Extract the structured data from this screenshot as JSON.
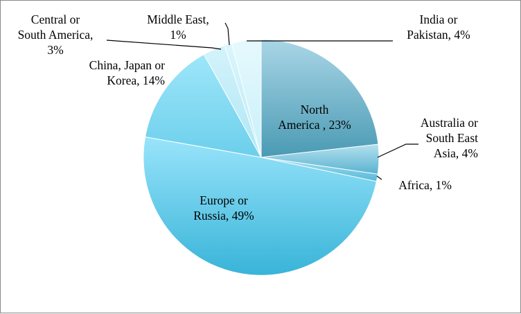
{
  "chart_data": {
    "type": "pie",
    "title": "",
    "start_angle_deg": 0,
    "direction": "clockwise",
    "slices": [
      {
        "label": "North America",
        "value": 23,
        "display": [
          "North",
          "America , 23%"
        ],
        "color": "#4a9ab4",
        "color_light": "#a9d6e6"
      },
      {
        "label": "Australia or South East Asia",
        "value": 4,
        "display": [
          "Australia or",
          "South East",
          "Asia, 4%"
        ],
        "color": "#5ab2cf",
        "color_light": "#b4e1ef"
      },
      {
        "label": "Africa",
        "value": 1,
        "display": [
          "Africa, 1%"
        ],
        "color": "#55b9d9",
        "color_light": "#a6e2f3"
      },
      {
        "label": "Europe or Russia",
        "value": 49,
        "display": [
          "Europe or",
          "Russia, 49%"
        ],
        "color": "#38b4d8",
        "color_light": "#99e4fb"
      },
      {
        "label": "China, Japan or Korea",
        "value": 14,
        "display": [
          "China, Japan or",
          "Korea, 14%"
        ],
        "color": "#6ccfeb",
        "color_light": "#9ee6fa"
      },
      {
        "label": "Central or South America",
        "value": 3,
        "display": [
          "Central or",
          "South America,",
          "3%"
        ],
        "color": "#aee6f5",
        "color_light": "#d4f3fb"
      },
      {
        "label": "Middle East",
        "value": 1,
        "display": [
          "Middle East,",
          "1%"
        ],
        "color": "#b8eaf7",
        "color_light": "#dcf6fc"
      },
      {
        "label": "India or Pakistan",
        "value": 4,
        "display": [
          "India or",
          "Pakistan, 4%"
        ],
        "color": "#c9f0fa",
        "color_light": "#e6f9fd"
      }
    ]
  }
}
